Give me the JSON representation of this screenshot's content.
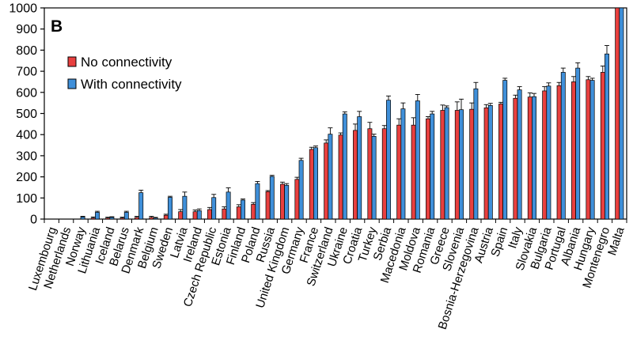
{
  "chart_data": {
    "type": "bar",
    "panel_label": "B",
    "ylim": [
      0,
      1000
    ],
    "yticks": [
      0,
      100,
      200,
      300,
      400,
      500,
      600,
      700,
      800,
      900,
      1000
    ],
    "grid": false,
    "legend_position": "top-left",
    "categories": [
      "Luxembourg",
      "Netherlands",
      "Norway",
      "Lithuania",
      "Iceland",
      "Belarus",
      "Denmark",
      "Belgium",
      "Sweden",
      "Latvia",
      "Ireland",
      "Czech Republic",
      "Estonia",
      "Finland",
      "Poland",
      "Russia",
      "United Kingdom",
      "Germany",
      "France",
      "Switzerland",
      "Ukraine",
      "Croatia",
      "Turkey",
      "Serbia",
      "Macedonia",
      "Moldova",
      "Romania",
      "Greece",
      "Slovenia",
      "Bosnia-Herzegovina",
      "Austria",
      "Spain",
      "Italy",
      "Slovakia",
      "Bulgaria",
      "Portugal",
      "Albania",
      "Hungary",
      "Montenegro",
      "Malta"
    ],
    "series": [
      {
        "name": "No connectivity",
        "color": "#e8403f",
        "values": [
          0,
          0,
          0,
          5,
          5,
          5,
          8,
          8,
          18,
          35,
          35,
          45,
          48,
          58,
          70,
          130,
          165,
          188,
          330,
          360,
          398,
          420,
          428,
          428,
          445,
          445,
          475,
          515,
          515,
          520,
          527,
          545,
          572,
          578,
          607,
          632,
          650,
          660,
          695,
          1000
        ],
        "errors": [
          2,
          2,
          2,
          5,
          4,
          4,
          5,
          5,
          5,
          10,
          8,
          10,
          10,
          10,
          8,
          5,
          10,
          10,
          10,
          15,
          10,
          30,
          30,
          15,
          30,
          35,
          10,
          25,
          40,
          30,
          15,
          8,
          15,
          20,
          20,
          15,
          25,
          15,
          30,
          0
        ]
      },
      {
        "name": "With connectivity",
        "color": "#3f8fd9",
        "values": [
          0,
          0,
          10,
          32,
          8,
          32,
          125,
          5,
          103,
          108,
          40,
          102,
          128,
          90,
          168,
          202,
          160,
          278,
          338,
          402,
          498,
          485,
          392,
          563,
          522,
          560,
          498,
          528,
          518,
          617,
          538,
          657,
          612,
          580,
          630,
          695,
          715,
          657,
          782,
          1000
        ],
        "errors": [
          2,
          2,
          3,
          5,
          3,
          5,
          12,
          3,
          5,
          20,
          8,
          15,
          20,
          5,
          10,
          5,
          8,
          10,
          8,
          30,
          10,
          25,
          10,
          20,
          28,
          30,
          12,
          8,
          50,
          30,
          10,
          10,
          15,
          15,
          15,
          20,
          25,
          10,
          40,
          0
        ]
      }
    ]
  }
}
